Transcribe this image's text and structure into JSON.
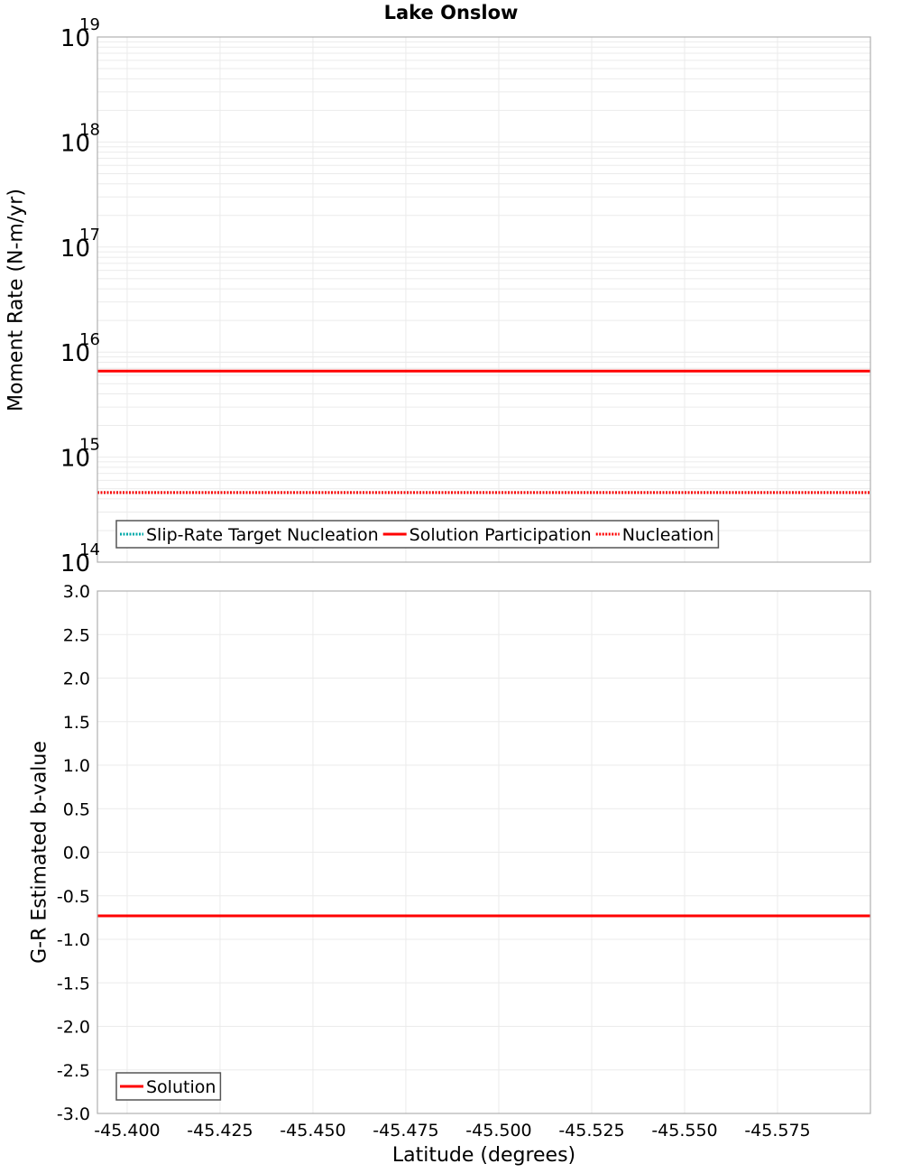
{
  "title": "Lake Onslow",
  "top_panel": {
    "ylabel": "Moment Rate (N-m/yr)",
    "yticks": [
      {
        "base": "10",
        "exp": "19",
        "value": 1e+19
      },
      {
        "base": "10",
        "exp": "18",
        "value": 1e+18
      },
      {
        "base": "10",
        "exp": "17",
        "value": 1e+17
      },
      {
        "base": "10",
        "exp": "16",
        "value": 1e+16
      },
      {
        "base": "10",
        "exp": "15",
        "value": 1000000000000000.0
      },
      {
        "base": "10",
        "exp": "14",
        "value": 100000000000000.0
      }
    ],
    "legend": [
      {
        "label": "Slip-Rate Target Nucleation",
        "color": "#00aaaa",
        "style": "dotted"
      },
      {
        "label": "Solution Participation",
        "color": "#ff0000",
        "style": "solid"
      },
      {
        "label": "Nucleation",
        "color": "#ff0000",
        "style": "dotted"
      }
    ]
  },
  "bottom_panel": {
    "ylabel": "G-R Estimated b-value",
    "yticks": [
      "3.0",
      "2.5",
      "2.0",
      "1.5",
      "1.0",
      "0.5",
      "0.0",
      "-0.5",
      "-1.0",
      "-1.5",
      "-2.0",
      "-2.5",
      "-3.0"
    ],
    "legend": [
      {
        "label": "Solution",
        "color": "#ff0000",
        "style": "solid"
      }
    ]
  },
  "xaxis": {
    "label": "Latitude (degrees)",
    "ticks": [
      "-45.400",
      "-45.425",
      "-45.450",
      "-45.475",
      "-45.500",
      "-45.525",
      "-45.550",
      "-45.575"
    ]
  },
  "chart_data": [
    {
      "type": "line",
      "title": "Lake Onslow",
      "xlabel": "Latitude (degrees)",
      "ylabel": "Moment Rate (N-m/yr)",
      "yscale": "log",
      "ylim": [
        100000000000000.0,
        1e+19
      ],
      "xlim": [
        -45.392,
        -45.6
      ],
      "x_ticks": [
        -45.4,
        -45.425,
        -45.45,
        -45.475,
        -45.5,
        -45.525,
        -45.55,
        -45.575
      ],
      "grid": true,
      "legend_position": "lower left",
      "x": [
        -45.392,
        -45.496,
        -45.6
      ],
      "series": [
        {
          "name": "Slip-Rate Target Nucleation",
          "color": "#00aaaa",
          "style": "dotted",
          "values": [
            460000000000000.0,
            460000000000000.0,
            460000000000000.0
          ]
        },
        {
          "name": "Solution Participation",
          "color": "#ff0000",
          "style": "solid",
          "values": [
            6600000000000000.0,
            6600000000000000.0,
            6600000000000000.0
          ]
        },
        {
          "name": "Nucleation",
          "color": "#ff0000",
          "style": "dotted",
          "values": [
            460000000000000.0,
            460000000000000.0,
            460000000000000.0
          ]
        }
      ]
    },
    {
      "type": "line",
      "xlabel": "Latitude (degrees)",
      "ylabel": "G-R Estimated b-value",
      "ylim": [
        -3.0,
        3.0
      ],
      "xlim": [
        -45.392,
        -45.6
      ],
      "y_ticks": [
        3.0,
        2.5,
        2.0,
        1.5,
        1.0,
        0.5,
        0.0,
        -0.5,
        -1.0,
        -1.5,
        -2.0,
        -2.5,
        -3.0
      ],
      "x_ticks": [
        -45.4,
        -45.425,
        -45.45,
        -45.475,
        -45.5,
        -45.525,
        -45.55,
        -45.575
      ],
      "grid": true,
      "legend_position": "lower left",
      "x": [
        -45.392,
        -45.496,
        -45.6
      ],
      "series": [
        {
          "name": "Solution",
          "color": "#ff0000",
          "style": "solid",
          "values": [
            -0.73,
            -0.73,
            -0.73
          ]
        }
      ]
    }
  ]
}
